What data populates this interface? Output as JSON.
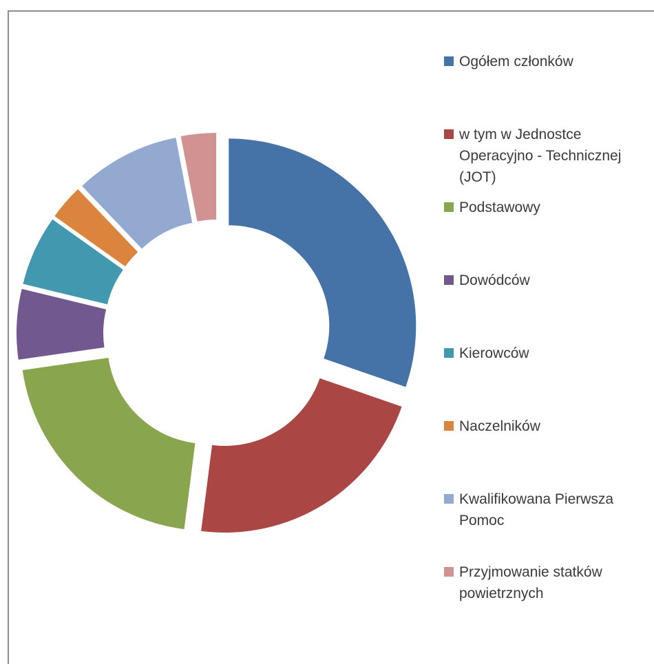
{
  "chart_data": {
    "type": "pie",
    "subtype": "exploded-doughnut",
    "title": "",
    "categories": [
      "Ogółem członków",
      "w tym w Jednostce Operacyjno - Technicznej (JOT)",
      "Podstawowy",
      "Dowódców",
      "Kierowców",
      "Naczelników",
      "Kwalifikowana Pierwsza Pomoc",
      "Przyjmowanie statków powietrznych"
    ],
    "values": [
      30,
      21.5,
      20.5,
      6,
      6,
      3,
      9,
      3
    ],
    "colors": [
      "#4572A7",
      "#AA4643",
      "#89A54E",
      "#71588F",
      "#4198AF",
      "#DB843D",
      "#93A9CF",
      "#D19392"
    ],
    "legend_position": "right"
  }
}
